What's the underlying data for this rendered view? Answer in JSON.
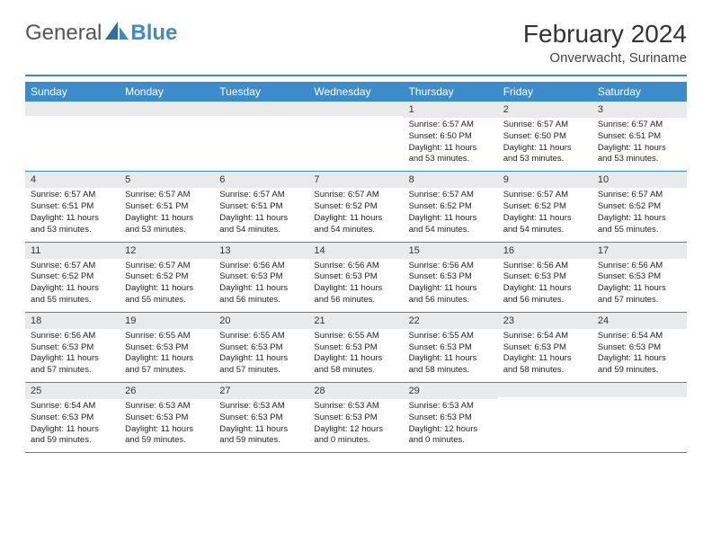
{
  "logo": {
    "text1": "General",
    "text2": "Blue"
  },
  "title": "February 2024",
  "location": "Onverwacht, Suriname",
  "colors": {
    "accent": "#3c8ccb",
    "stripe": "#e9eaec",
    "text": "#333333",
    "background": "#ffffff"
  },
  "typography": {
    "title_fontsize": 28,
    "location_fontsize": 15,
    "dayhead_fontsize": 12,
    "daynum_fontsize": 11,
    "body_fontsize": 9.5
  },
  "day_headers": [
    "Sunday",
    "Monday",
    "Tuesday",
    "Wednesday",
    "Thursday",
    "Friday",
    "Saturday"
  ],
  "weeks": [
    [
      {
        "n": "",
        "sunrise": "",
        "sunset": "",
        "daylight": ""
      },
      {
        "n": "",
        "sunrise": "",
        "sunset": "",
        "daylight": ""
      },
      {
        "n": "",
        "sunrise": "",
        "sunset": "",
        "daylight": ""
      },
      {
        "n": "",
        "sunrise": "",
        "sunset": "",
        "daylight": ""
      },
      {
        "n": "1",
        "sunrise": "Sunrise: 6:57 AM",
        "sunset": "Sunset: 6:50 PM",
        "daylight": "Daylight: 11 hours and 53 minutes."
      },
      {
        "n": "2",
        "sunrise": "Sunrise: 6:57 AM",
        "sunset": "Sunset: 6:50 PM",
        "daylight": "Daylight: 11 hours and 53 minutes."
      },
      {
        "n": "3",
        "sunrise": "Sunrise: 6:57 AM",
        "sunset": "Sunset: 6:51 PM",
        "daylight": "Daylight: 11 hours and 53 minutes."
      }
    ],
    [
      {
        "n": "4",
        "sunrise": "Sunrise: 6:57 AM",
        "sunset": "Sunset: 6:51 PM",
        "daylight": "Daylight: 11 hours and 53 minutes."
      },
      {
        "n": "5",
        "sunrise": "Sunrise: 6:57 AM",
        "sunset": "Sunset: 6:51 PM",
        "daylight": "Daylight: 11 hours and 53 minutes."
      },
      {
        "n": "6",
        "sunrise": "Sunrise: 6:57 AM",
        "sunset": "Sunset: 6:51 PM",
        "daylight": "Daylight: 11 hours and 54 minutes."
      },
      {
        "n": "7",
        "sunrise": "Sunrise: 6:57 AM",
        "sunset": "Sunset: 6:52 PM",
        "daylight": "Daylight: 11 hours and 54 minutes."
      },
      {
        "n": "8",
        "sunrise": "Sunrise: 6:57 AM",
        "sunset": "Sunset: 6:52 PM",
        "daylight": "Daylight: 11 hours and 54 minutes."
      },
      {
        "n": "9",
        "sunrise": "Sunrise: 6:57 AM",
        "sunset": "Sunset: 6:52 PM",
        "daylight": "Daylight: 11 hours and 54 minutes."
      },
      {
        "n": "10",
        "sunrise": "Sunrise: 6:57 AM",
        "sunset": "Sunset: 6:52 PM",
        "daylight": "Daylight: 11 hours and 55 minutes."
      }
    ],
    [
      {
        "n": "11",
        "sunrise": "Sunrise: 6:57 AM",
        "sunset": "Sunset: 6:52 PM",
        "daylight": "Daylight: 11 hours and 55 minutes."
      },
      {
        "n": "12",
        "sunrise": "Sunrise: 6:57 AM",
        "sunset": "Sunset: 6:52 PM",
        "daylight": "Daylight: 11 hours and 55 minutes."
      },
      {
        "n": "13",
        "sunrise": "Sunrise: 6:56 AM",
        "sunset": "Sunset: 6:53 PM",
        "daylight": "Daylight: 11 hours and 56 minutes."
      },
      {
        "n": "14",
        "sunrise": "Sunrise: 6:56 AM",
        "sunset": "Sunset: 6:53 PM",
        "daylight": "Daylight: 11 hours and 56 minutes."
      },
      {
        "n": "15",
        "sunrise": "Sunrise: 6:56 AM",
        "sunset": "Sunset: 6:53 PM",
        "daylight": "Daylight: 11 hours and 56 minutes."
      },
      {
        "n": "16",
        "sunrise": "Sunrise: 6:56 AM",
        "sunset": "Sunset: 6:53 PM",
        "daylight": "Daylight: 11 hours and 56 minutes."
      },
      {
        "n": "17",
        "sunrise": "Sunrise: 6:56 AM",
        "sunset": "Sunset: 6:53 PM",
        "daylight": "Daylight: 11 hours and 57 minutes."
      }
    ],
    [
      {
        "n": "18",
        "sunrise": "Sunrise: 6:56 AM",
        "sunset": "Sunset: 6:53 PM",
        "daylight": "Daylight: 11 hours and 57 minutes."
      },
      {
        "n": "19",
        "sunrise": "Sunrise: 6:55 AM",
        "sunset": "Sunset: 6:53 PM",
        "daylight": "Daylight: 11 hours and 57 minutes."
      },
      {
        "n": "20",
        "sunrise": "Sunrise: 6:55 AM",
        "sunset": "Sunset: 6:53 PM",
        "daylight": "Daylight: 11 hours and 57 minutes."
      },
      {
        "n": "21",
        "sunrise": "Sunrise: 6:55 AM",
        "sunset": "Sunset: 6:53 PM",
        "daylight": "Daylight: 11 hours and 58 minutes."
      },
      {
        "n": "22",
        "sunrise": "Sunrise: 6:55 AM",
        "sunset": "Sunset: 6:53 PM",
        "daylight": "Daylight: 11 hours and 58 minutes."
      },
      {
        "n": "23",
        "sunrise": "Sunrise: 6:54 AM",
        "sunset": "Sunset: 6:53 PM",
        "daylight": "Daylight: 11 hours and 58 minutes."
      },
      {
        "n": "24",
        "sunrise": "Sunrise: 6:54 AM",
        "sunset": "Sunset: 6:53 PM",
        "daylight": "Daylight: 11 hours and 59 minutes."
      }
    ],
    [
      {
        "n": "25",
        "sunrise": "Sunrise: 6:54 AM",
        "sunset": "Sunset: 6:53 PM",
        "daylight": "Daylight: 11 hours and 59 minutes."
      },
      {
        "n": "26",
        "sunrise": "Sunrise: 6:53 AM",
        "sunset": "Sunset: 6:53 PM",
        "daylight": "Daylight: 11 hours and 59 minutes."
      },
      {
        "n": "27",
        "sunrise": "Sunrise: 6:53 AM",
        "sunset": "Sunset: 6:53 PM",
        "daylight": "Daylight: 11 hours and 59 minutes."
      },
      {
        "n": "28",
        "sunrise": "Sunrise: 6:53 AM",
        "sunset": "Sunset: 6:53 PM",
        "daylight": "Daylight: 12 hours and 0 minutes."
      },
      {
        "n": "29",
        "sunrise": "Sunrise: 6:53 AM",
        "sunset": "Sunset: 6:53 PM",
        "daylight": "Daylight: 12 hours and 0 minutes."
      },
      {
        "n": "",
        "sunrise": "",
        "sunset": "",
        "daylight": ""
      },
      {
        "n": "",
        "sunrise": "",
        "sunset": "",
        "daylight": ""
      }
    ]
  ]
}
